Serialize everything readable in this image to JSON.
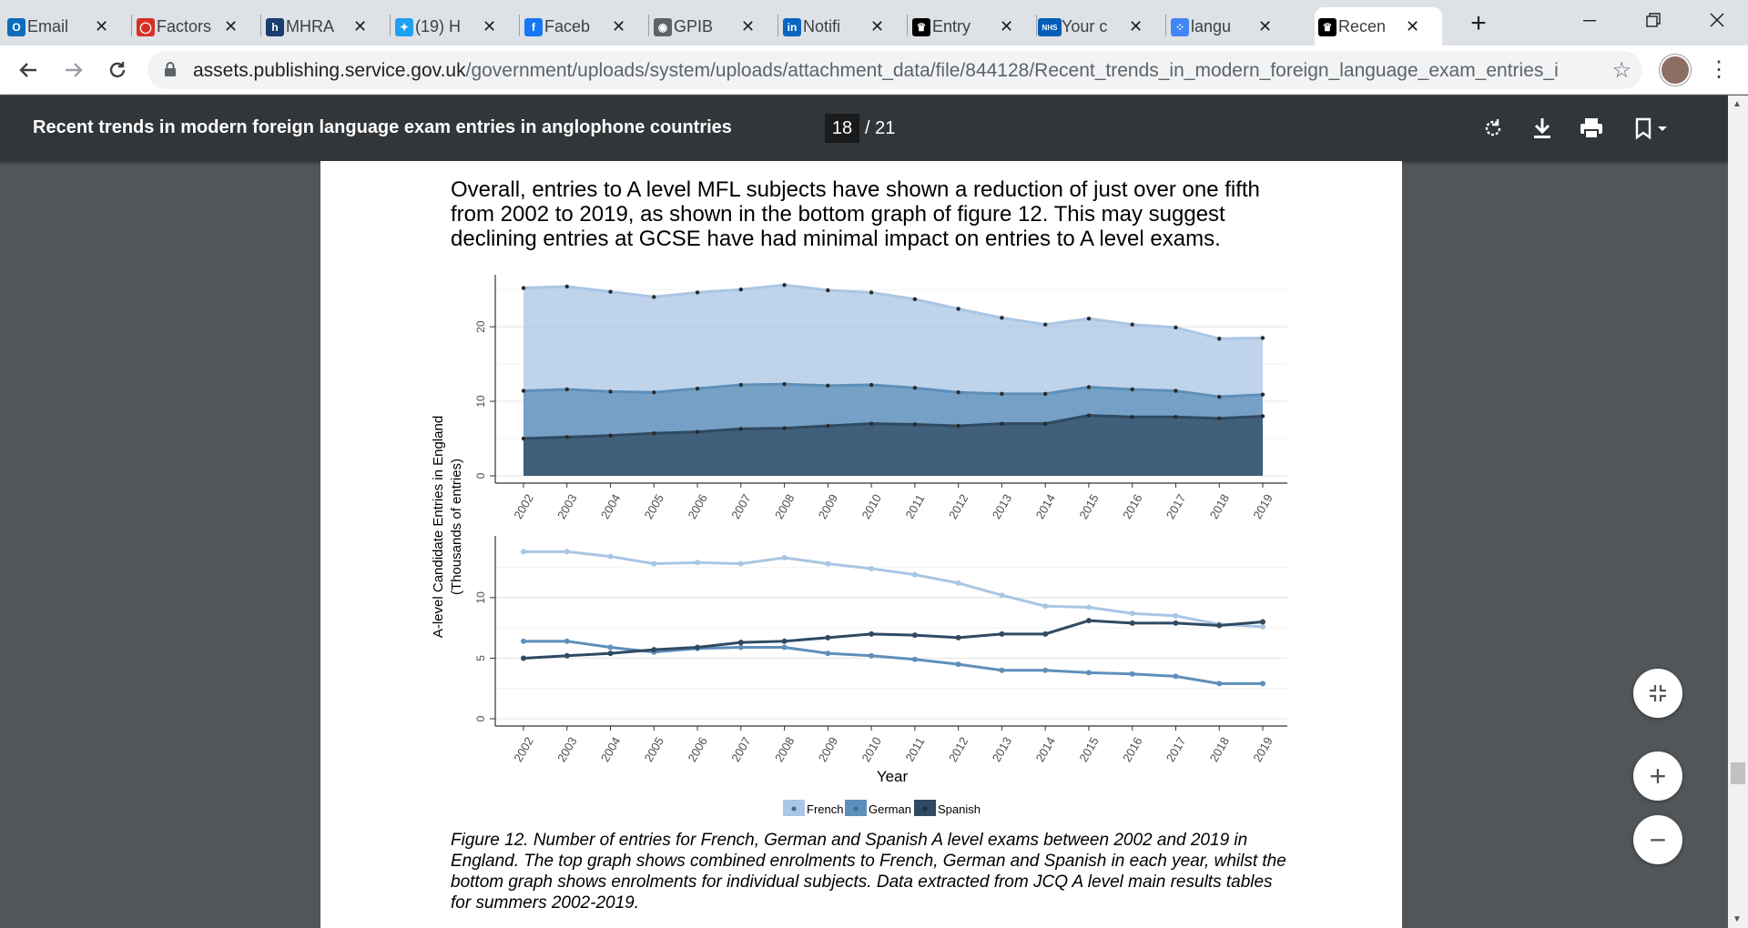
{
  "tabs": [
    {
      "title": "Email",
      "icon": "outlook-icon",
      "color": "#0f6cbd",
      "glyph": "O"
    },
    {
      "title": "Factors",
      "icon": "chat-bubble-icon",
      "color": "#d93025",
      "glyph": "◯"
    },
    {
      "title": "MHRA",
      "icon": "mhra-icon",
      "color": "#1a3c6e",
      "glyph": "h"
    },
    {
      "title": "(19) H",
      "icon": "twitter-icon",
      "color": "#1da1f2",
      "glyph": "✦"
    },
    {
      "title": "Faceb",
      "icon": "facebook-icon",
      "color": "#1877f2",
      "glyph": "f"
    },
    {
      "title": "GPIB",
      "icon": "globe-icon",
      "color": "#5f6368",
      "glyph": "◉"
    },
    {
      "title": "Notifi",
      "icon": "linkedin-icon",
      "color": "#0a66c2",
      "glyph": "in"
    },
    {
      "title": "Entry",
      "icon": "crown-icon",
      "color": "#000000",
      "glyph": "♛"
    },
    {
      "title": "Your c",
      "icon": "nhs-icon",
      "color": "#005eb8",
      "glyph": "NHS"
    },
    {
      "title": "langu",
      "icon": "dots-icon",
      "color": "#4285f4",
      "glyph": "⁘"
    },
    {
      "title": "Recen",
      "icon": "crown-icon",
      "color": "#000000",
      "glyph": "♛",
      "active": true
    }
  ],
  "address": {
    "host": "assets.publishing.service.gov.uk",
    "path": "/government/uploads/system/uploads/attachment_data/file/844128/Recent_trends_in_modern_foreign_language_exam_entries_in_a..."
  },
  "pdf": {
    "title": "Recent trends in modern foreign language exam entries in anglophone countries",
    "page": "18",
    "total": "/ 21"
  },
  "body_text": "Overall, entries to A level MFL subjects have shown a reduction of just over one fifth from 2002 to 2019, as shown in the bottom graph of figure 12. This may suggest declining entries at GCSE have had minimal impact on entries to A level exams.",
  "caption": "Figure 12. Number of entries for French, German and Spanish A level exams between 2002 and 2019 in England. The top graph shows combined enrolments to French, German and Spanish in each year, whilst the bottom graph shows enrolments for individual subjects. Data extracted from JCQ A level main results tables for summers 2002-2019.",
  "colors": {
    "french": "#a9c6e4",
    "german": "#5e8fba",
    "spanish": "#2f4a62"
  },
  "chart_data": [
    {
      "type": "area",
      "stacked": true,
      "x": [
        "2002",
        "2003",
        "2004",
        "2005",
        "2006",
        "2007",
        "2008",
        "2009",
        "2010",
        "2011",
        "2012",
        "2013",
        "2014",
        "2015",
        "2016",
        "2017",
        "2018",
        "2019"
      ],
      "series": [
        {
          "name": "Spanish",
          "values": [
            5.0,
            5.2,
            5.4,
            5.7,
            5.9,
            6.3,
            6.4,
            6.7,
            7.0,
            6.9,
            6.7,
            7.0,
            7.0,
            8.1,
            7.9,
            7.9,
            7.7,
            8.0
          ]
        },
        {
          "name": "German",
          "values": [
            6.4,
            6.4,
            5.9,
            5.5,
            5.8,
            5.9,
            5.9,
            5.4,
            5.2,
            4.9,
            4.5,
            4.0,
            4.0,
            3.8,
            3.7,
            3.5,
            2.9,
            2.9
          ]
        },
        {
          "name": "French",
          "values": [
            13.8,
            13.8,
            13.4,
            12.8,
            12.9,
            12.8,
            13.3,
            12.8,
            12.4,
            11.9,
            11.2,
            10.2,
            9.3,
            9.2,
            8.7,
            8.5,
            7.8,
            7.6
          ]
        }
      ],
      "ylim": [
        0,
        26
      ],
      "yticks": [
        0,
        10,
        20
      ],
      "cumulative_totals": [
        25.2,
        25.4,
        24.7,
        24.0,
        24.6,
        25.0,
        25.6,
        24.9,
        24.6,
        23.7,
        22.4,
        21.2,
        20.3,
        21.1,
        20.3,
        19.9,
        18.4,
        18.5
      ]
    },
    {
      "type": "line",
      "x": [
        "2002",
        "2003",
        "2004",
        "2005",
        "2006",
        "2007",
        "2008",
        "2009",
        "2010",
        "2011",
        "2012",
        "2013",
        "2014",
        "2015",
        "2016",
        "2017",
        "2018",
        "2019"
      ],
      "series": [
        {
          "name": "French",
          "values": [
            13.8,
            13.8,
            13.4,
            12.8,
            12.9,
            12.8,
            13.3,
            12.8,
            12.4,
            11.9,
            11.2,
            10.2,
            9.3,
            9.2,
            8.7,
            8.5,
            7.8,
            7.6
          ]
        },
        {
          "name": "German",
          "values": [
            6.4,
            6.4,
            5.9,
            5.5,
            5.8,
            5.9,
            5.9,
            5.4,
            5.2,
            4.9,
            4.5,
            4.0,
            4.0,
            3.8,
            3.7,
            3.5,
            2.9,
            2.9
          ]
        },
        {
          "name": "Spanish",
          "values": [
            5.0,
            5.2,
            5.4,
            5.7,
            5.9,
            6.3,
            6.4,
            6.7,
            7.0,
            6.9,
            6.7,
            7.0,
            7.0,
            8.1,
            7.9,
            7.9,
            7.7,
            8.0
          ]
        }
      ],
      "ylim": [
        0,
        14.5
      ],
      "yticks": [
        0,
        5,
        10
      ]
    }
  ],
  "chart_labels": {
    "ylabel_line1": "A-level Candidate Entries in England",
    "ylabel_line2": "(Thousands of entries)",
    "xlabel": "Year",
    "legend": [
      "French",
      "German",
      "Spanish"
    ]
  }
}
